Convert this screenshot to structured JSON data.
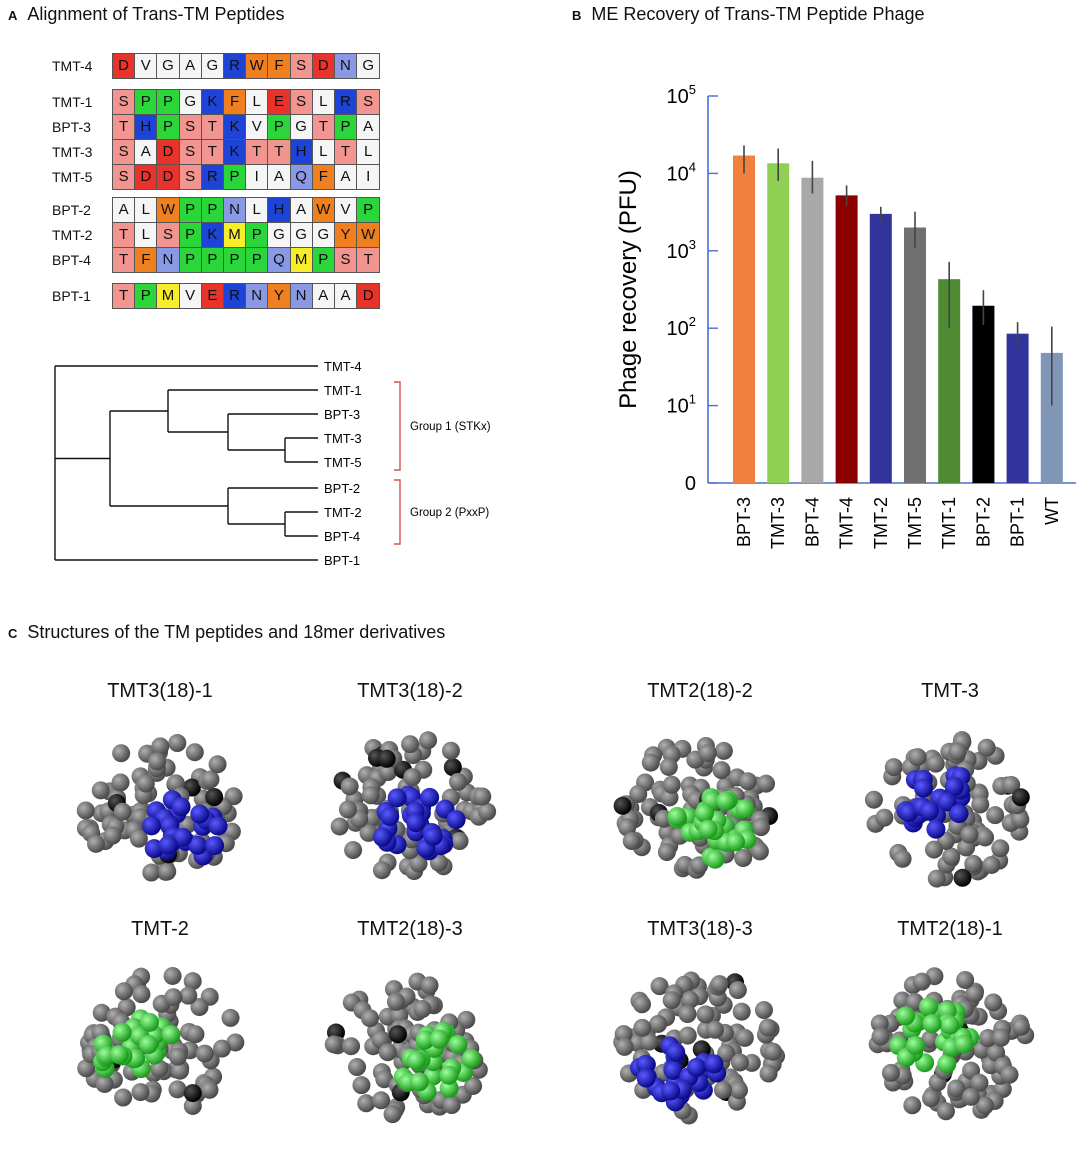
{
  "panelA": {
    "letter": "A",
    "title": "Alignment of Trans-TM Peptides",
    "colors": {
      "D": "#e8322a",
      "E": "#e8322a",
      "R": "#1d44d6",
      "K": "#1d44d6",
      "H": "#1d44d6",
      "W": "#f07f1f",
      "F": "#f07f1f",
      "Y": "#f07f1f",
      "N": "#8a99e6",
      "Q": "#8a99e6",
      "S": "#f2948f",
      "T": "#f2948f",
      "P": "#2bd63a",
      "M": "#f7ee2a",
      "V": "#f5f5f5",
      "G": "#f5f5f5",
      "A": "#f5f5f5",
      "L": "#f5f5f5",
      "I": "#f5f5f5",
      "C": "#f5f5f5"
    },
    "groups": [
      [
        {
          "name": "TMT-4",
          "seq": "DVGAGRWFSDNG"
        }
      ],
      [
        {
          "name": "TMT-1",
          "seq": "SPPGKFLESLRS"
        },
        {
          "name": "BPT-3",
          "seq": "THPSTKVPGTPA"
        },
        {
          "name": "TMT-3",
          "seq": "SADSTKTTHLTL"
        },
        {
          "name": "TMT-5",
          "seq": "SDDSRPIAQFAI"
        }
      ],
      [
        {
          "name": "BPT-2",
          "seq": "ALWPPNLHAWVP"
        },
        {
          "name": "TMT-2",
          "seq": "TLSPKMPGGGYW"
        },
        {
          "name": "BPT-4",
          "seq": "TFNPPPPQMPST"
        }
      ],
      [
        {
          "name": "BPT-1",
          "seq": "TPMVERNYNAAD"
        }
      ]
    ],
    "tree": {
      "leaves": [
        "TMT-4",
        "TMT-1",
        "BPT-3",
        "TMT-3",
        "TMT-5",
        "BPT-2",
        "TMT-2",
        "BPT-4",
        "BPT-1"
      ],
      "group_labels": [
        "Group 1 (STKx)",
        "Group 2 (PxxP)"
      ]
    }
  },
  "panelB": {
    "letter": "B"
  },
  "chart_data": {
    "type": "bar",
    "title": "ME Recovery of Trans-TM Peptide Phage",
    "xlabel": "",
    "ylabel": "Phage recovery (PFU)",
    "yscale": "log",
    "ylim": [
      1,
      100000
    ],
    "yticks": [
      "0",
      "10^1",
      "10^2",
      "10^3",
      "10^4",
      "10^5"
    ],
    "categories": [
      "BPT-3",
      "TMT-3",
      "BPT-4",
      "TMT-4",
      "TMT-2",
      "TMT-5",
      "TMT-1",
      "BPT-2",
      "BPT-1",
      "WT"
    ],
    "values": [
      17000,
      13500,
      8800,
      5200,
      3000,
      2000,
      430,
      195,
      85,
      48
    ],
    "err_low": [
      10000,
      8000,
      5500,
      3800,
      2400,
      1100,
      100,
      110,
      60,
      10
    ],
    "err_high": [
      23000,
      21000,
      14500,
      7000,
      3700,
      3200,
      720,
      310,
      120,
      105
    ],
    "colors": [
      "#f0803c",
      "#8fd052",
      "#a8a8a8",
      "#8b0000",
      "#32339b",
      "#707070",
      "#4f8b33",
      "#000000",
      "#32339b",
      "#7f96b7"
    ]
  },
  "panelC": {
    "letter": "C",
    "title": "Structures of the TM peptides and 18mer derivatives",
    "structures": [
      {
        "name": "TMT3(18)-1",
        "accent": "#1414c8"
      },
      {
        "name": "TMT3(18)-2",
        "accent": "#1414c8"
      },
      {
        "name": "TMT2(18)-2",
        "accent": "#33e033"
      },
      {
        "name": "TMT-3",
        "accent": "#1414c8"
      },
      {
        "name": "TMT-2",
        "accent": "#33e033"
      },
      {
        "name": "TMT2(18)-3",
        "accent": "#33e033"
      },
      {
        "name": "TMT3(18)-3",
        "accent": "#1414c8"
      },
      {
        "name": "TMT2(18)-1",
        "accent": "#33e033"
      }
    ]
  }
}
